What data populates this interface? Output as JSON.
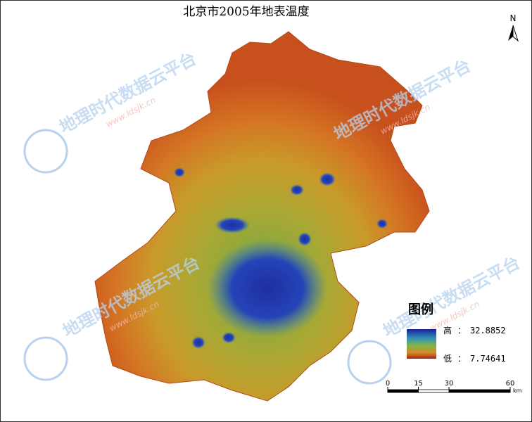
{
  "title": "北京市2005年地表温度",
  "north": "N",
  "legend": {
    "title": "图例",
    "separator": "：",
    "high": {
      "label": "高",
      "value": 32.8852
    },
    "low": {
      "label": "低",
      "value": 7.74641
    }
  },
  "scale_bar": {
    "ticks": [
      0,
      15,
      30,
      60
    ],
    "unit": "km"
  },
  "watermark": {
    "name": "地理时代数据云平台",
    "url": "www.ldsjk.cn"
  }
}
